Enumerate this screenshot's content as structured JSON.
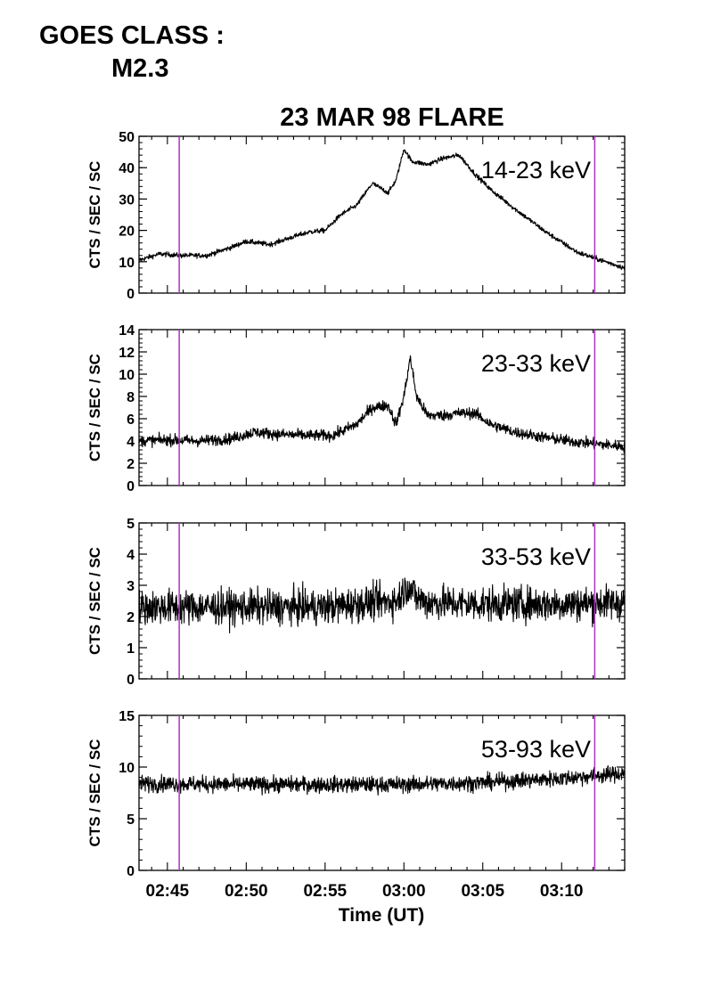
{
  "goes": {
    "line1": "GOES CLASS :",
    "line2": "M2.3"
  },
  "chart_data": {
    "type": "line",
    "title": "23 MAR 98 FLARE",
    "xlabel": "Time (UT)",
    "x_tick_labels": [
      "02:45",
      "02:50",
      "02:55",
      "03:00",
      "03:05",
      "03:10"
    ],
    "x_tick_minutes": [
      45,
      50,
      55,
      60,
      65,
      70
    ],
    "xlim_minutes_after_0200": [
      43.2,
      74.0
    ],
    "marker_lines": {
      "color": "#b030c8",
      "positions_minutes_after_0200": [
        45.75,
        72.1
      ]
    },
    "line_color": "#000000",
    "panels": [
      {
        "label": "14-23 keV",
        "ylabel": "CTS / SEC / SC",
        "ylim": [
          0,
          50
        ],
        "y_ticks": [
          0,
          10,
          20,
          30,
          40,
          50
        ],
        "noise": 0.7,
        "series_x": [
          43.2,
          44.5,
          45.8,
          47.5,
          49.0,
          50.0,
          51.5,
          53.0,
          54.0,
          55.0,
          56.0,
          57.0,
          58.0,
          59.0,
          59.5,
          60.0,
          60.5,
          61.5,
          62.5,
          63.5,
          64.5,
          65.5,
          67.0,
          69.0,
          71.0,
          72.5,
          74.0
        ],
        "series_y": [
          10.5,
          12.5,
          12,
          12,
          14.5,
          16.5,
          15.5,
          18,
          19.5,
          20,
          25,
          28,
          35,
          32,
          36,
          46,
          42,
          41,
          43,
          44,
          38,
          33,
          27,
          19.5,
          13,
          10.5,
          8
        ]
      },
      {
        "label": "23-33 keV",
        "ylabel": "CTS / SEC / SC",
        "ylim": [
          0,
          14
        ],
        "y_ticks": [
          0,
          2,
          4,
          6,
          8,
          10,
          12,
          14
        ],
        "noise": 0.45,
        "series_x": [
          43.2,
          45.0,
          47.0,
          49.0,
          50.5,
          52.0,
          54.0,
          55.5,
          57.0,
          58.0,
          59.0,
          59.5,
          60.0,
          60.4,
          60.8,
          61.5,
          62.5,
          63.5,
          64.5,
          65.5,
          67.0,
          69.0,
          71.0,
          72.5,
          74.0
        ],
        "series_y": [
          4.0,
          4.1,
          4.0,
          4.2,
          4.8,
          4.6,
          4.5,
          4.5,
          5.5,
          7.0,
          7.2,
          5.5,
          8.0,
          11.5,
          8.0,
          6.3,
          6.3,
          6.5,
          6.5,
          5.5,
          4.8,
          4.3,
          3.9,
          3.7,
          3.5
        ]
      },
      {
        "label": "33-53 keV",
        "ylabel": "CTS / SEC / SC",
        "ylim": [
          0,
          5
        ],
        "y_ticks": [
          0,
          1,
          2,
          3,
          4,
          5
        ],
        "noise": 0.5,
        "series_x": [
          43.2,
          50.0,
          55.0,
          58.0,
          59.5,
          60.3,
          60.8,
          61.5,
          65.0,
          70.0,
          74.0
        ],
        "series_y": [
          2.3,
          2.3,
          2.3,
          2.45,
          2.5,
          3.0,
          2.6,
          2.45,
          2.4,
          2.4,
          2.45
        ]
      },
      {
        "label": "53-93 keV",
        "ylabel": "CTS / SEC / SC",
        "ylim": [
          0,
          15
        ],
        "y_ticks": [
          0,
          5,
          10,
          15
        ],
        "noise": 0.7,
        "series_x": [
          43.2,
          50.0,
          55.0,
          60.0,
          65.0,
          70.0,
          74.0
        ],
        "series_y": [
          8.4,
          8.3,
          8.3,
          8.3,
          8.5,
          8.9,
          9.4
        ]
      }
    ]
  }
}
